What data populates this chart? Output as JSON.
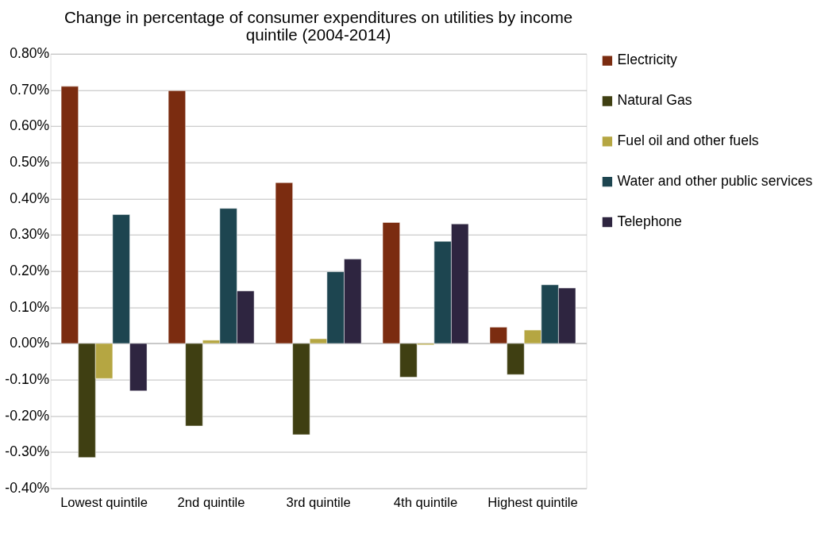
{
  "chart_data": {
    "type": "bar",
    "title": "Change in percentage of consumer expenditures on utilities by income quintile (2004-2014)",
    "categories": [
      "Lowest quintile",
      "2nd quintile",
      "3rd quintile",
      "4th quintile",
      "Highest quintile"
    ],
    "series": [
      {
        "name": "Electricity",
        "color": "#7b2c10",
        "values": [
          0.71,
          0.698,
          0.444,
          0.334,
          0.045
        ]
      },
      {
        "name": "Natural Gas",
        "color": "#3f3f12",
        "values": [
          -0.315,
          -0.228,
          -0.252,
          -0.093,
          -0.086
        ]
      },
      {
        "name": "Fuel oil and other fuels",
        "color": "#b5a642",
        "values": [
          -0.097,
          0.009,
          0.013,
          -0.004,
          0.037
        ]
      },
      {
        "name": "Water and other public services",
        "color": "#1d4550",
        "values": [
          0.356,
          0.373,
          0.198,
          0.282,
          0.162
        ]
      },
      {
        "name": "Telephone",
        "color": "#2e2540",
        "values": [
          -0.131,
          0.145,
          0.233,
          0.33,
          0.153
        ]
      }
    ],
    "ylim": [
      -0.4,
      0.8
    ],
    "yticks": [
      {
        "value": -0.4,
        "label": "-0.40%"
      },
      {
        "value": -0.3,
        "label": "-0.30%"
      },
      {
        "value": -0.2,
        "label": "-0.20%"
      },
      {
        "value": -0.1,
        "label": "-0.10%"
      },
      {
        "value": 0,
        "label": "0.00%"
      },
      {
        "value": 0.1,
        "label": "0.10%"
      },
      {
        "value": 0.2,
        "label": "0.20%"
      },
      {
        "value": 0.3,
        "label": "0.30%"
      },
      {
        "value": 0.4,
        "label": "0.40%"
      },
      {
        "value": 0.5,
        "label": "0.50%"
      },
      {
        "value": 0.6,
        "label": "0.60%"
      },
      {
        "value": 0.7,
        "label": "0.70%"
      },
      {
        "value": 0.8,
        "label": "0.80%"
      }
    ],
    "grid": "y",
    "legend": "right"
  }
}
